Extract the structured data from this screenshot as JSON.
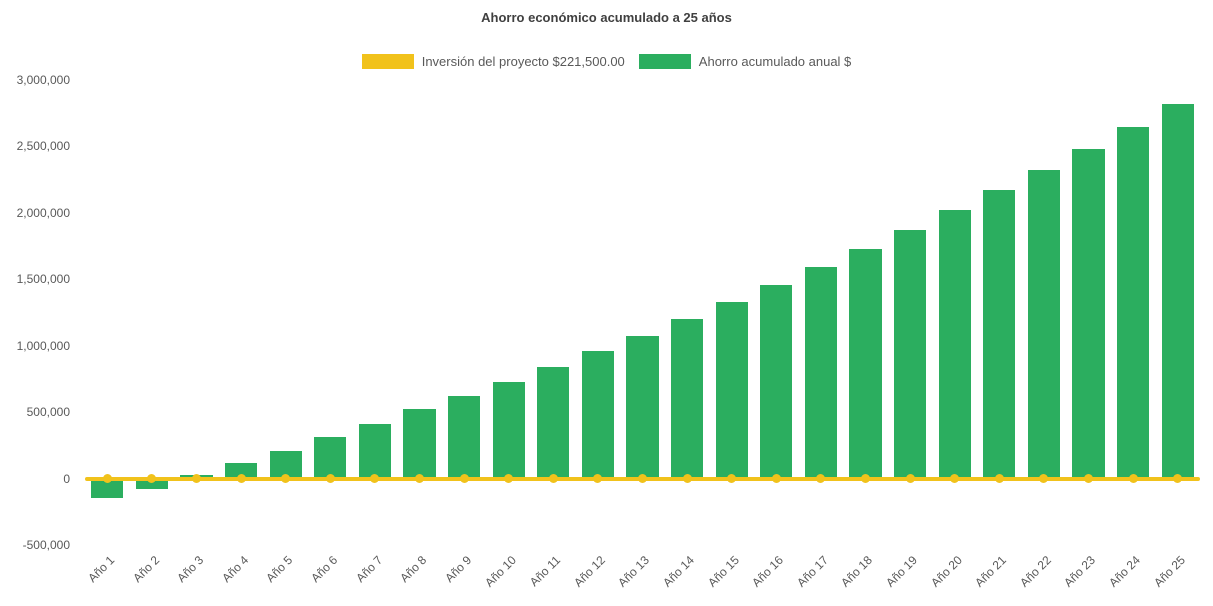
{
  "page": {
    "background": "#ffffff"
  },
  "chart": {
    "title": "Ahorro económico acumulado a 25 años",
    "legend": [
      {
        "label": "Inversión del proyecto $221,500.00",
        "color": "#f1c21b"
      },
      {
        "label": "Ahorro acumulado anual $",
        "color": "#2bae5f"
      }
    ]
  },
  "chart_data": {
    "type": "bar",
    "title": "Ahorro económico acumulado a 25 años",
    "categories": [
      "Año 1",
      "Año 2",
      "Año 3",
      "Año 4",
      "Año 5",
      "Año 6",
      "Año 7",
      "Año 8",
      "Año 9",
      "Año 10",
      "Año 11",
      "Año 12",
      "Año 13",
      "Año 14",
      "Año 15",
      "Año 16",
      "Año 17",
      "Año 18",
      "Año 19",
      "Año 20",
      "Año 21",
      "Año 22",
      "Año 23",
      "Año 24",
      "Año 25"
    ],
    "series": [
      {
        "name": "Inversión del proyecto $221,500.00",
        "type": "line",
        "color": "#f1c21b",
        "marker": "circle",
        "constant_value": 0,
        "investment_amount": 221500
      },
      {
        "name": "Ahorro acumulado anual $",
        "type": "bar",
        "color": "#2bae5f",
        "values": [
          -150000,
          -75000,
          30000,
          120000,
          210000,
          310000,
          410000,
          520000,
          620000,
          730000,
          840000,
          960000,
          1070000,
          1200000,
          1330000,
          1460000,
          1590000,
          1730000,
          1870000,
          2020000,
          2170000,
          2320000,
          2480000,
          2650000,
          2820000
        ]
      }
    ],
    "ylim": [
      -500000,
      3000000
    ],
    "yticks": [
      {
        "value": -500000,
        "label": "-500,000"
      },
      {
        "value": 0,
        "label": "0"
      },
      {
        "value": 500000,
        "label": "500,000"
      },
      {
        "value": 1000000,
        "label": "1,000,000"
      },
      {
        "value": 1500000,
        "label": "1,500,000"
      },
      {
        "value": 2000000,
        "label": "2,000,000"
      },
      {
        "value": 2500000,
        "label": "2,500,000"
      },
      {
        "value": 3000000,
        "label": "3,000,000"
      }
    ],
    "grid": false,
    "legend_position": "top"
  }
}
